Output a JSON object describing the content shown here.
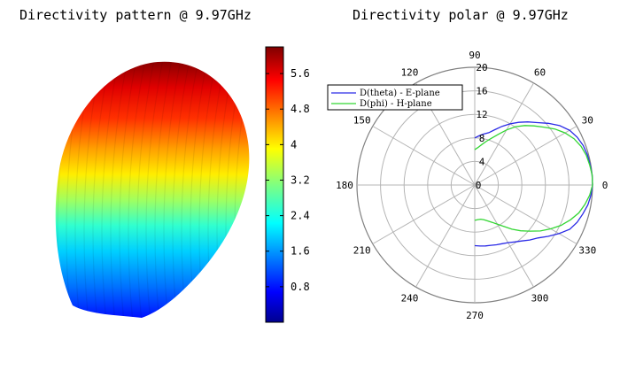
{
  "titles": {
    "left": "Directivity pattern @ 9.97GHz",
    "right": "Directivity polar @ 9.97GHz"
  },
  "chart_data": [
    {
      "type": "heatmap",
      "title": "Directivity pattern @ 9.97GHz",
      "colormap": "jet",
      "colorbar": {
        "min": 0,
        "max": 6.2,
        "ticks": [
          0.8,
          1.6,
          2.4,
          3.2,
          4,
          4.8,
          5.6
        ],
        "tick_labels": [
          "0.8",
          "1.6",
          "2.4",
          "3.2",
          "4",
          "4.8",
          "5.6"
        ]
      }
    },
    {
      "type": "line",
      "subtype": "polar",
      "title": "Directivity polar @ 9.97GHz",
      "rlim": [
        0,
        20
      ],
      "radial_ticks": [
        0,
        4,
        8,
        12,
        16,
        20
      ],
      "radial_tick_labels": [
        "0",
        "4",
        "8",
        "12",
        "16",
        "20"
      ],
      "angle_ticks": [
        0,
        30,
        60,
        90,
        120,
        150,
        180,
        210,
        240,
        270,
        300,
        330
      ],
      "angle_tick_labels": [
        "0",
        "30",
        "60",
        "90",
        "120",
        "150",
        "180",
        "210",
        "240",
        "270",
        "300",
        "330"
      ],
      "grid": true,
      "legend_position": "top-left",
      "series": [
        {
          "name": "D(theta) - E-plane",
          "color": "#2a2ae6",
          "points": [
            [
              90,
              8.0
            ],
            [
              85,
              8.4
            ],
            [
              80,
              8.8
            ],
            [
              75,
              9.2
            ],
            [
              70,
              10.0
            ],
            [
              65,
              11.0
            ],
            [
              60,
              12.0
            ],
            [
              55,
              13.0
            ],
            [
              50,
              14.0
            ],
            [
              45,
              15.0
            ],
            [
              40,
              16.3
            ],
            [
              35,
              17.6
            ],
            [
              30,
              18.6
            ],
            [
              25,
              19.2
            ],
            [
              20,
              19.6
            ],
            [
              15,
              19.8
            ],
            [
              10,
              19.9
            ],
            [
              5,
              20.0
            ],
            [
              0,
              20.0
            ],
            [
              -5,
              19.8
            ],
            [
              -10,
              19.5
            ],
            [
              -15,
              19.0
            ],
            [
              -20,
              18.5
            ],
            [
              -25,
              17.8
            ],
            [
              -30,
              16.5
            ],
            [
              -35,
              15.2
            ],
            [
              -40,
              14.0
            ],
            [
              -45,
              13.2
            ],
            [
              -50,
              12.4
            ],
            [
              -55,
              11.8
            ],
            [
              -60,
              11.3
            ],
            [
              -65,
              11.0
            ],
            [
              -70,
              10.8
            ],
            [
              -75,
              10.6
            ],
            [
              -80,
              10.5
            ],
            [
              -85,
              10.4
            ],
            [
              -90,
              10.3
            ]
          ]
        },
        {
          "name": "D(phi) - H-plane",
          "color": "#33d633",
          "points": [
            [
              90,
              6.0
            ],
            [
              85,
              6.4
            ],
            [
              80,
              7.0
            ],
            [
              75,
              7.7
            ],
            [
              70,
              8.5
            ],
            [
              65,
              9.5
            ],
            [
              60,
              10.8
            ],
            [
              55,
              12.1
            ],
            [
              50,
              13.2
            ],
            [
              45,
              14.2
            ],
            [
              40,
              15.3
            ],
            [
              35,
              16.6
            ],
            [
              30,
              17.7
            ],
            [
              25,
              18.6
            ],
            [
              20,
              19.2
            ],
            [
              15,
              19.6
            ],
            [
              10,
              19.8
            ],
            [
              5,
              20.0
            ],
            [
              0,
              20.0
            ],
            [
              -5,
              19.6
            ],
            [
              -10,
              19.0
            ],
            [
              -15,
              18.3
            ],
            [
              -20,
              17.3
            ],
            [
              -25,
              16.2
            ],
            [
              -30,
              14.9
            ],
            [
              -35,
              13.6
            ],
            [
              -40,
              12.2
            ],
            [
              -45,
              11.0
            ],
            [
              -50,
              9.8
            ],
            [
              -55,
              8.6
            ],
            [
              -60,
              7.7
            ],
            [
              -65,
              7.0
            ],
            [
              -70,
              6.5
            ],
            [
              -75,
              6.1
            ],
            [
              -80,
              5.9
            ],
            [
              -85,
              5.9
            ],
            [
              -90,
              6.0
            ]
          ]
        }
      ]
    }
  ]
}
